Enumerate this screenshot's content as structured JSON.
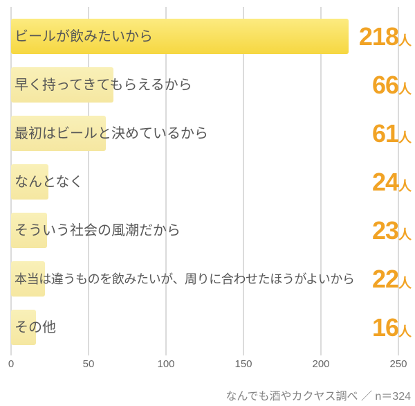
{
  "chart_data": {
    "type": "bar",
    "orientation": "horizontal",
    "title": "",
    "xlabel": "",
    "ylabel": "",
    "categories": [
      "ビールが飲みたいから",
      "早く持ってきてもらえるから",
      "最初はビールと決めているから",
      "なんとなく",
      "そういう社会の風潮だから",
      "本当は違うものを飲みたいが、周りに合わせたほうがよいから",
      "その他"
    ],
    "values": [
      218,
      66,
      61,
      24,
      23,
      22,
      16
    ],
    "value_suffix": "人",
    "value_labels": [
      "218人",
      "66人",
      "61人",
      "24人",
      "23人",
      "22人",
      "16人"
    ],
    "x_ticks": [
      0,
      50,
      100,
      150,
      200,
      250
    ],
    "xlim": [
      0,
      250
    ],
    "grid": true,
    "legend": false,
    "highlight_index": 0,
    "source": "なんでも酒やカクヤス調べ ／ n＝324",
    "colors": {
      "highlight_bar_top": "#FCEB80",
      "highlight_bar_bottom": "#F6D741",
      "bar_top": "#F9F0B8",
      "bar_bottom": "#F5E7A1",
      "value_text": "#F1A325",
      "label_text": "#575757",
      "gridline": "#DBDBDB",
      "tick_text": "#666666",
      "source_text": "#838383"
    }
  }
}
